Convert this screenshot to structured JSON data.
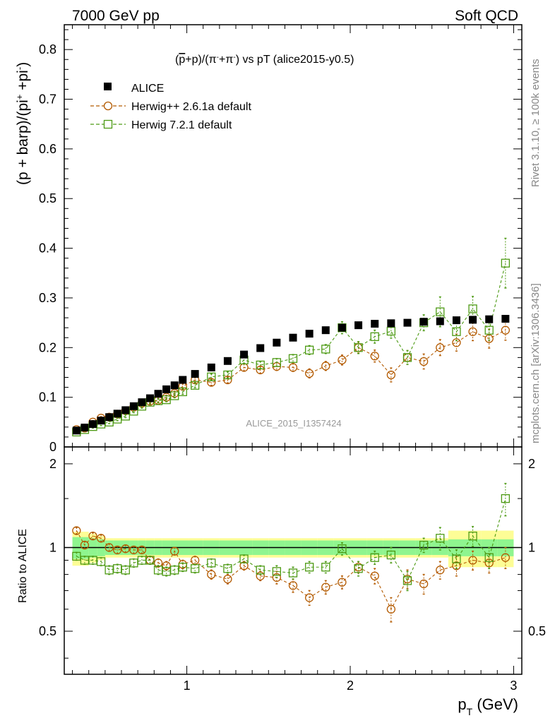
{
  "header": {
    "left": "7000 GeV pp",
    "right": "Soft QCD"
  },
  "side_labels": {
    "rivet": "Rivet 3.1.10, ≥ 100k events",
    "mcplots": "mcplots.cern.ch [arXiv:1306.3436]"
  },
  "chart_data": [
    {
      "type": "scatter",
      "title": "(p̄+p)/(π⁻+π⁻) vs pT (alice2015-y0.5)",
      "title_parts": {
        "a": "(",
        "pbar": "p",
        "b": "+p)/(π",
        "sup1": "-",
        "c": "+π",
        "sup2": "-",
        "d": ") vs pT (alice2015-y0.5)"
      },
      "ylabel": "(p + barp)/(pi",
      "ylabel_parts": {
        "a": "(p + barp)/(pi",
        "sup1": "+",
        "b": " +pi",
        "sup2": "-",
        "c": ")"
      },
      "watermark": "ALICE_2015_I1357424",
      "xlim": [
        0.25,
        3.05
      ],
      "ylim": [
        0,
        0.85
      ],
      "yticks": [
        0,
        0.1,
        0.2,
        0.3,
        0.4,
        0.5,
        0.6,
        0.7,
        0.8
      ],
      "ytick_labels": [
        "0",
        "0.1",
        "0.2",
        "0.3",
        "0.4",
        "0.5",
        "0.6",
        "0.7",
        "0.8"
      ],
      "legend_position": "top-left",
      "x": [
        0.325,
        0.375,
        0.425,
        0.475,
        0.525,
        0.575,
        0.625,
        0.675,
        0.725,
        0.775,
        0.825,
        0.875,
        0.925,
        0.975,
        1.05,
        1.15,
        1.25,
        1.35,
        1.45,
        1.55,
        1.65,
        1.75,
        1.85,
        1.95,
        2.05,
        2.15,
        2.25,
        2.35,
        2.45,
        2.55,
        2.65,
        2.75,
        2.85,
        2.95
      ],
      "series": [
        {
          "name": "ALICE",
          "marker": "filled-square",
          "color": "#000000",
          "values": [
            0.033,
            0.039,
            0.046,
            0.053,
            0.06,
            0.067,
            0.074,
            0.082,
            0.09,
            0.098,
            0.107,
            0.116,
            0.124,
            0.135,
            0.147,
            0.16,
            0.173,
            0.186,
            0.199,
            0.21,
            0.22,
            0.228,
            0.235,
            0.24,
            0.245,
            0.248,
            0.249,
            0.25,
            0.252,
            0.253,
            0.255,
            0.256,
            0.257,
            0.258
          ],
          "errors": [
            0,
            0,
            0,
            0,
            0,
            0,
            0,
            0,
            0,
            0,
            0,
            0,
            0,
            0,
            0,
            0,
            0,
            0,
            0,
            0,
            0,
            0,
            0,
            0,
            0,
            0,
            0,
            0,
            0,
            0,
            0,
            0,
            0,
            0
          ]
        },
        {
          "name": "Herwig++ 2.6.1a default",
          "marker": "open-circle",
          "color": "#b35a00",
          "values": [
            0.035,
            0.038,
            0.05,
            0.058,
            0.06,
            0.066,
            0.073,
            0.08,
            0.088,
            0.092,
            0.094,
            0.1,
            0.108,
            0.122,
            0.135,
            0.13,
            0.135,
            0.16,
            0.155,
            0.162,
            0.16,
            0.148,
            0.163,
            0.175,
            0.2,
            0.183,
            0.145,
            0.18,
            0.172,
            0.2,
            0.21,
            0.232,
            0.218,
            0.235
          ],
          "errors": [
            0.003,
            0.003,
            0.003,
            0.003,
            0.003,
            0.003,
            0.003,
            0.003,
            0.004,
            0.004,
            0.004,
            0.004,
            0.004,
            0.005,
            0.005,
            0.006,
            0.006,
            0.007,
            0.007,
            0.008,
            0.008,
            0.009,
            0.009,
            0.01,
            0.011,
            0.012,
            0.014,
            0.014,
            0.015,
            0.016,
            0.017,
            0.018,
            0.019,
            0.02
          ]
        },
        {
          "name": "Herwig 7.2.1 default",
          "marker": "open-square",
          "color": "#4d9a14",
          "values": [
            0.03,
            0.035,
            0.041,
            0.046,
            0.05,
            0.056,
            0.062,
            0.072,
            0.082,
            0.09,
            0.093,
            0.095,
            0.103,
            0.111,
            0.124,
            0.141,
            0.145,
            0.175,
            0.165,
            0.17,
            0.178,
            0.195,
            0.197,
            0.24,
            0.2,
            0.222,
            0.233,
            0.18,
            0.25,
            0.272,
            0.232,
            0.278,
            0.235,
            0.37
          ],
          "errors": [
            0.003,
            0.003,
            0.003,
            0.003,
            0.003,
            0.003,
            0.003,
            0.003,
            0.004,
            0.004,
            0.004,
            0.004,
            0.004,
            0.005,
            0.005,
            0.006,
            0.006,
            0.007,
            0.007,
            0.008,
            0.008,
            0.009,
            0.009,
            0.012,
            0.012,
            0.013,
            0.014,
            0.014,
            0.016,
            0.03,
            0.018,
            0.025,
            0.02,
            0.05
          ]
        }
      ]
    },
    {
      "type": "scatter",
      "ylabel": "Ratio to ALICE",
      "xlabel": "p",
      "xlabel_sub": "T",
      "xlabel_rest": " (GeV)",
      "xlim": [
        0.25,
        3.05
      ],
      "ylim": [
        0.35,
        2.3
      ],
      "xticks": [
        1,
        2,
        3
      ],
      "xtick_labels": [
        "1",
        "2",
        "3"
      ],
      "yticks": [
        0.5,
        1,
        2
      ],
      "ytick_labels": [
        "0.5",
        "1",
        "2"
      ],
      "band_inner_color": "#8ff58f",
      "band_outer_color": "#fdfd96",
      "x": [
        0.325,
        0.375,
        0.425,
        0.475,
        0.525,
        0.575,
        0.625,
        0.675,
        0.725,
        0.775,
        0.825,
        0.875,
        0.925,
        0.975,
        1.05,
        1.15,
        1.25,
        1.35,
        1.45,
        1.55,
        1.65,
        1.75,
        1.85,
        1.95,
        2.05,
        2.15,
        2.25,
        2.35,
        2.45,
        2.55,
        2.65,
        2.75,
        2.85,
        2.95
      ],
      "band_inner": [
        0.09,
        0.09,
        0.08,
        0.07,
        0.06,
        0.06,
        0.06,
        0.06,
        0.06,
        0.06,
        0.06,
        0.06,
        0.06,
        0.06,
        0.06,
        0.06,
        0.06,
        0.06,
        0.06,
        0.06,
        0.06,
        0.06,
        0.06,
        0.06,
        0.06,
        0.06,
        0.06,
        0.06,
        0.06,
        0.06,
        0.07,
        0.07,
        0.07,
        0.07
      ],
      "band_outer": [
        0.14,
        0.14,
        0.12,
        0.1,
        0.08,
        0.08,
        0.08,
        0.08,
        0.08,
        0.08,
        0.08,
        0.08,
        0.08,
        0.08,
        0.08,
        0.08,
        0.08,
        0.08,
        0.08,
        0.08,
        0.08,
        0.08,
        0.08,
        0.08,
        0.08,
        0.08,
        0.08,
        0.08,
        0.08,
        0.08,
        0.15,
        0.15,
        0.15,
        0.15
      ],
      "series": [
        {
          "name": "Herwig++ 2.6.1a default",
          "marker": "open-circle",
          "color": "#b35a00",
          "values": [
            1.15,
            1.02,
            1.1,
            1.08,
            1.0,
            0.98,
            0.99,
            0.98,
            0.98,
            0.9,
            0.88,
            0.86,
            0.97,
            0.87,
            0.9,
            0.8,
            0.77,
            0.86,
            0.79,
            0.78,
            0.73,
            0.66,
            0.72,
            0.75,
            0.85,
            0.79,
            0.6,
            0.77,
            0.74,
            0.83,
            0.86,
            0.9,
            0.88,
            0.92
          ],
          "errors": [
            0.03,
            0.03,
            0.03,
            0.03,
            0.03,
            0.03,
            0.03,
            0.03,
            0.03,
            0.03,
            0.03,
            0.03,
            0.03,
            0.03,
            0.03,
            0.03,
            0.03,
            0.03,
            0.03,
            0.04,
            0.04,
            0.04,
            0.04,
            0.04,
            0.04,
            0.05,
            0.06,
            0.06,
            0.06,
            0.06,
            0.07,
            0.07,
            0.07,
            0.08
          ]
        },
        {
          "name": "Herwig 7.2.1 default",
          "marker": "open-square",
          "color": "#4d9a14",
          "values": [
            0.93,
            0.9,
            0.9,
            0.89,
            0.83,
            0.84,
            0.83,
            0.88,
            0.9,
            0.9,
            0.83,
            0.82,
            0.83,
            0.85,
            0.84,
            0.88,
            0.84,
            0.91,
            0.83,
            0.82,
            0.81,
            0.85,
            0.85,
            0.99,
            0.84,
            0.92,
            0.94,
            0.76,
            1.02,
            1.08,
            0.91,
            1.1,
            0.92,
            1.5
          ],
          "errors": [
            0.03,
            0.03,
            0.03,
            0.03,
            0.03,
            0.03,
            0.03,
            0.03,
            0.03,
            0.03,
            0.03,
            0.03,
            0.03,
            0.03,
            0.03,
            0.03,
            0.03,
            0.03,
            0.03,
            0.04,
            0.04,
            0.04,
            0.04,
            0.05,
            0.05,
            0.05,
            0.06,
            0.06,
            0.06,
            0.1,
            0.07,
            0.09,
            0.08,
            0.2
          ]
        }
      ]
    }
  ]
}
